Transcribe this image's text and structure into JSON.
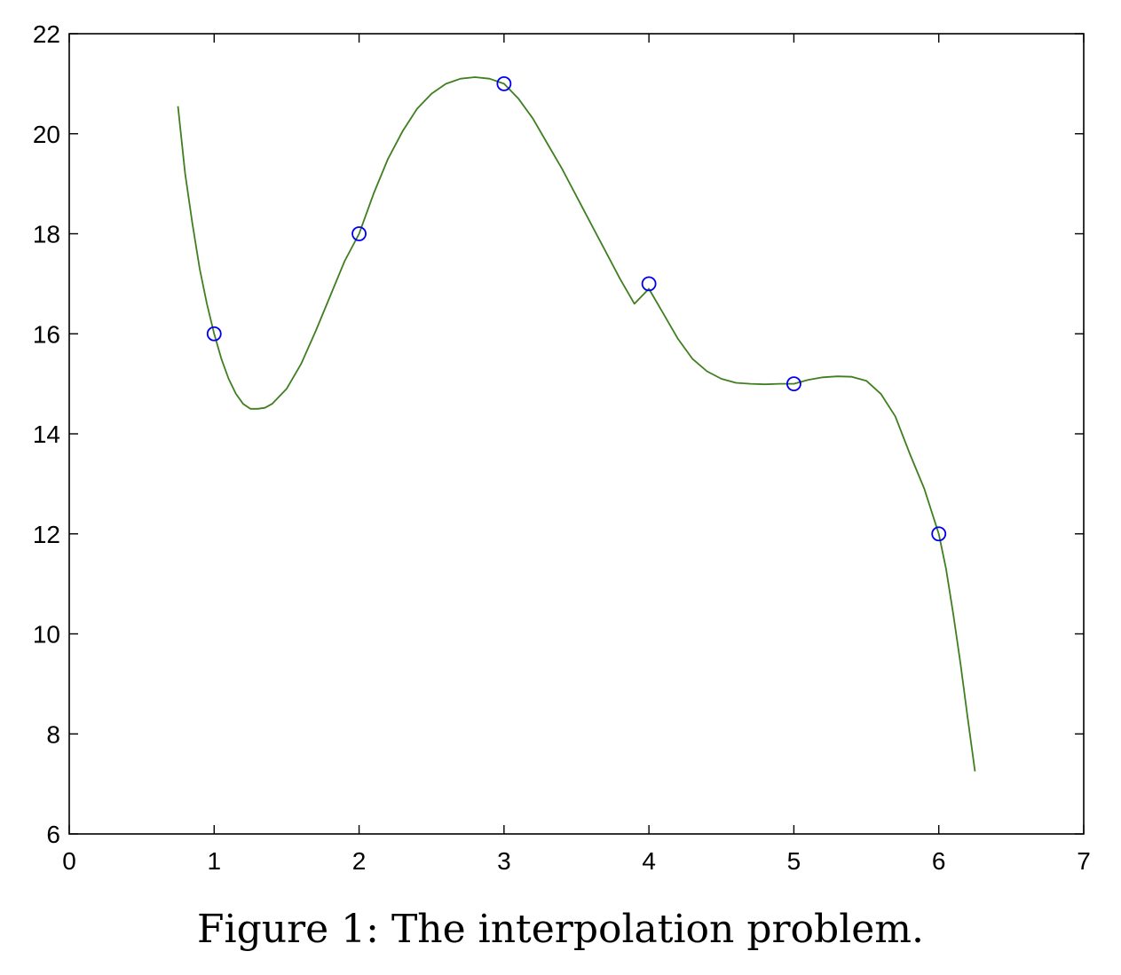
{
  "caption": "Figure 1: The interpolation problem.",
  "colors": {
    "curve": "#3f7f1f",
    "markers": "#0000ee",
    "axes": "#000000"
  },
  "chart_data": {
    "type": "line",
    "title": "",
    "xlabel": "",
    "ylabel": "",
    "xlim": [
      0,
      7
    ],
    "ylim": [
      6,
      22
    ],
    "xticks": [
      0,
      1,
      2,
      3,
      4,
      5,
      6,
      7
    ],
    "yticks": [
      6,
      8,
      10,
      12,
      14,
      16,
      18,
      20,
      22
    ],
    "grid": false,
    "series": [
      {
        "style": "line",
        "x": [
          0.75,
          0.8,
          0.85,
          0.9,
          0.95,
          1.0,
          1.05,
          1.1,
          1.15,
          1.2,
          1.25,
          1.3,
          1.35,
          1.4,
          1.5,
          1.6,
          1.7,
          1.8,
          1.9,
          2.0,
          2.1,
          2.2,
          2.3,
          2.4,
          2.5,
          2.6,
          2.7,
          2.8,
          2.9,
          3.0,
          3.1,
          3.2,
          3.3,
          3.4,
          3.5,
          3.6,
          3.7,
          3.8,
          3.9,
          4.0,
          4.1,
          4.2,
          4.3,
          4.4,
          4.5,
          4.6,
          4.7,
          4.8,
          4.9,
          5.0,
          5.1,
          5.2,
          5.3,
          5.4,
          5.5,
          5.6,
          5.7,
          5.8,
          5.9,
          6.0,
          6.05,
          6.1,
          6.15,
          6.2,
          6.25
        ],
        "y": [
          20.55,
          19.2,
          18.2,
          17.3,
          16.6,
          16.0,
          15.5,
          15.1,
          14.8,
          14.6,
          14.5,
          14.5,
          14.52,
          14.6,
          14.9,
          15.4,
          16.05,
          16.75,
          17.45,
          18.0,
          18.8,
          19.5,
          20.05,
          20.5,
          20.8,
          21.0,
          21.1,
          21.13,
          21.1,
          21.0,
          20.7,
          20.3,
          19.8,
          19.3,
          18.75,
          18.2,
          17.65,
          17.1,
          16.6,
          16.9,
          16.4,
          15.9,
          15.5,
          15.25,
          15.1,
          15.02,
          15.0,
          14.99,
          15.0,
          15.0,
          15.08,
          15.13,
          15.15,
          15.14,
          15.06,
          14.8,
          14.35,
          13.6,
          12.9,
          12.0,
          11.3,
          10.4,
          9.4,
          8.3,
          7.25
        ]
      },
      {
        "style": "markers",
        "x": [
          1,
          2,
          3,
          4,
          5,
          6
        ],
        "y": [
          16,
          18,
          21,
          17,
          15,
          12
        ]
      }
    ]
  }
}
